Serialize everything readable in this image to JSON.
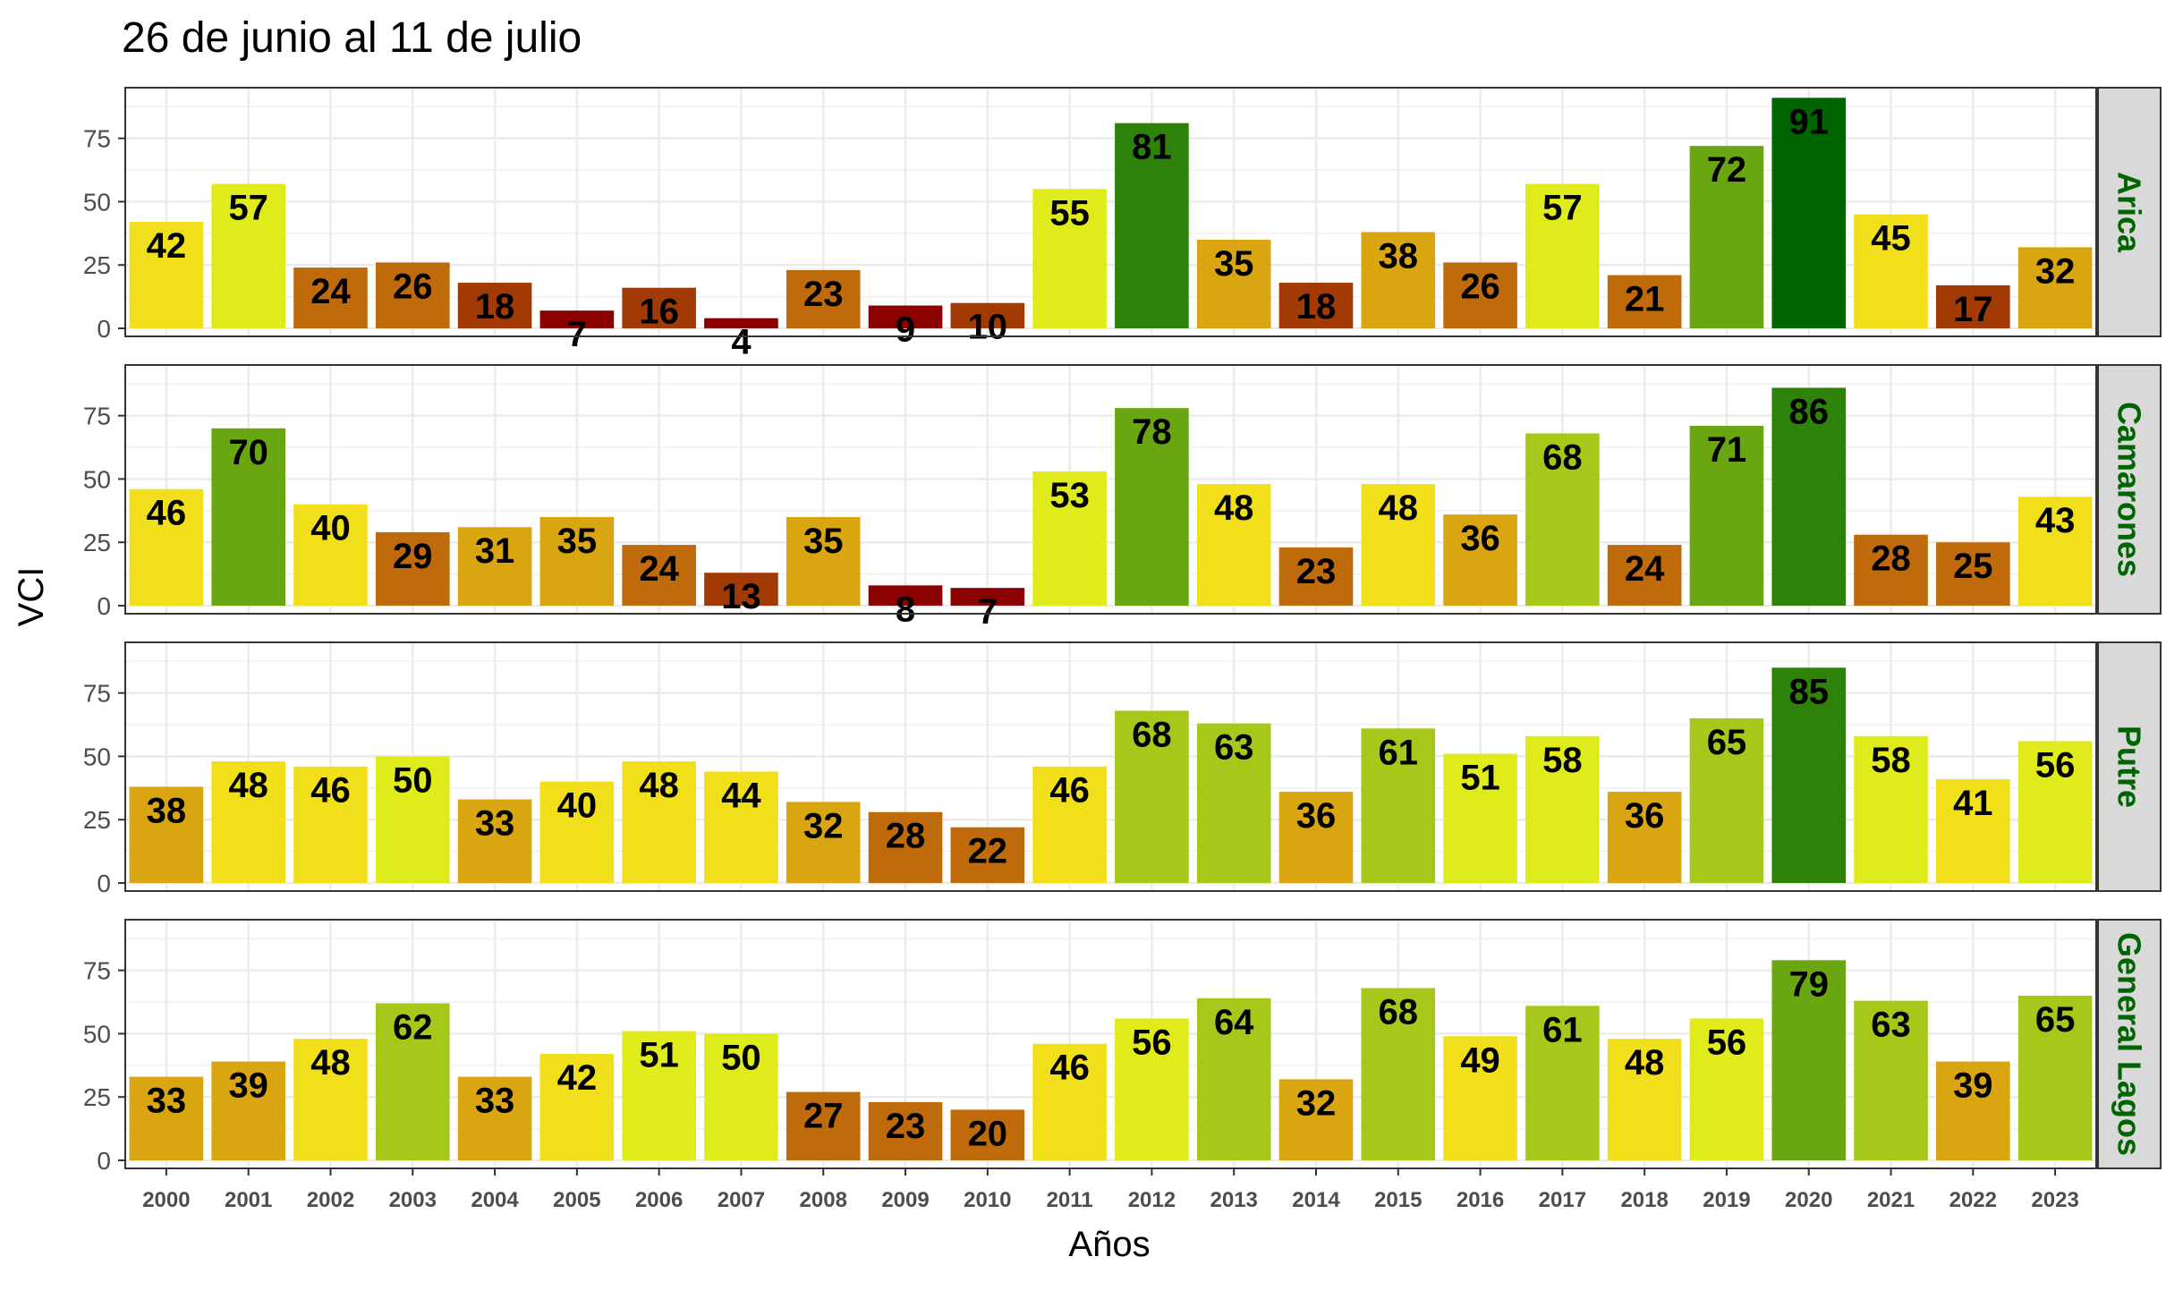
{
  "chart_data": {
    "type": "bar",
    "title": "26 de junio al 11 de julio",
    "xlabel": "Años",
    "ylabel": "VCI",
    "ylim": [
      0,
      95
    ],
    "yticks": [
      0,
      25,
      50,
      75
    ],
    "grid": true,
    "categories": [
      "2000",
      "2001",
      "2002",
      "2003",
      "2004",
      "2005",
      "2006",
      "2007",
      "2008",
      "2009",
      "2010",
      "2011",
      "2012",
      "2013",
      "2014",
      "2015",
      "2016",
      "2017",
      "2018",
      "2019",
      "2020",
      "2021",
      "2022",
      "2023"
    ],
    "series": [
      {
        "name": "Arica",
        "values": [
          42,
          57,
          24,
          26,
          18,
          7,
          16,
          4,
          23,
          9,
          10,
          55,
          81,
          35,
          18,
          38,
          26,
          57,
          21,
          72,
          91,
          45,
          17,
          32
        ]
      },
      {
        "name": "Camarones",
        "values": [
          46,
          70,
          40,
          29,
          31,
          35,
          24,
          13,
          35,
          8,
          7,
          53,
          78,
          48,
          23,
          48,
          36,
          68,
          24,
          71,
          86,
          28,
          25,
          43
        ]
      },
      {
        "name": "Putre",
        "values": [
          38,
          48,
          46,
          50,
          33,
          40,
          48,
          44,
          32,
          28,
          22,
          46,
          68,
          63,
          36,
          61,
          51,
          58,
          36,
          65,
          85,
          58,
          41,
          56
        ]
      },
      {
        "name": "General Lagos",
        "values": [
          33,
          39,
          48,
          62,
          33,
          42,
          51,
          50,
          27,
          23,
          20,
          46,
          56,
          64,
          32,
          68,
          49,
          61,
          48,
          56,
          79,
          63,
          39,
          65
        ]
      }
    ],
    "color_scale": [
      {
        "min": 0,
        "max": 10,
        "color": "#8b0000"
      },
      {
        "min": 10,
        "max": 20,
        "color": "#a23a06"
      },
      {
        "min": 20,
        "max": 30,
        "color": "#bf6b0b"
      },
      {
        "min": 30,
        "max": 40,
        "color": "#d9a611"
      },
      {
        "min": 40,
        "max": 50,
        "color": "#f1df1c"
      },
      {
        "min": 50,
        "max": 60,
        "color": "#e0eb1c"
      },
      {
        "min": 60,
        "max": 70,
        "color": "#a6c81a"
      },
      {
        "min": 70,
        "max": 80,
        "color": "#6aa612"
      },
      {
        "min": 80,
        "max": 90,
        "color": "#2f8209"
      },
      {
        "min": 90,
        "max": 100,
        "color": "#006400"
      }
    ],
    "strip_text_color": "#006400",
    "strip_background": "#d9d9d9"
  }
}
